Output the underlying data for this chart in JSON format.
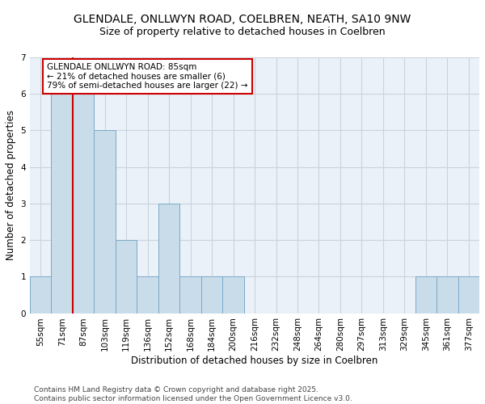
{
  "title_line1": "GLENDALE, ONLLWYN ROAD, COELBREN, NEATH, SA10 9NW",
  "title_line2": "Size of property relative to detached houses in Coelbren",
  "xlabel": "Distribution of detached houses by size in Coelbren",
  "ylabel": "Number of detached properties",
  "categories": [
    "55sqm",
    "71sqm",
    "87sqm",
    "103sqm",
    "119sqm",
    "136sqm",
    "152sqm",
    "168sqm",
    "184sqm",
    "200sqm",
    "216sqm",
    "232sqm",
    "248sqm",
    "264sqm",
    "280sqm",
    "297sqm",
    "313sqm",
    "329sqm",
    "345sqm",
    "361sqm",
    "377sqm"
  ],
  "values": [
    1,
    6,
    6,
    5,
    2,
    1,
    3,
    1,
    1,
    1,
    0,
    0,
    0,
    0,
    0,
    0,
    0,
    0,
    1,
    1,
    1
  ],
  "bar_color": "#c9dcea",
  "bar_edge_color": "#7aaac8",
  "vline_x": 1.5,
  "vline_color": "#cc0000",
  "annotation_box_text": "GLENDALE ONLLWYN ROAD: 85sqm\n← 21% of detached houses are smaller (6)\n79% of semi-detached houses are larger (22) →",
  "ylim": [
    0,
    7
  ],
  "yticks": [
    0,
    1,
    2,
    3,
    4,
    5,
    6,
    7
  ],
  "background_color": "#eaf1f8",
  "grid_color": "#c8d4de",
  "footer_text": "Contains HM Land Registry data © Crown copyright and database right 2025.\nContains public sector information licensed under the Open Government Licence v3.0.",
  "title_fontsize": 10,
  "subtitle_fontsize": 9,
  "axis_label_fontsize": 8.5,
  "tick_fontsize": 7.5,
  "annotation_fontsize": 7.5,
  "footer_fontsize": 6.5
}
